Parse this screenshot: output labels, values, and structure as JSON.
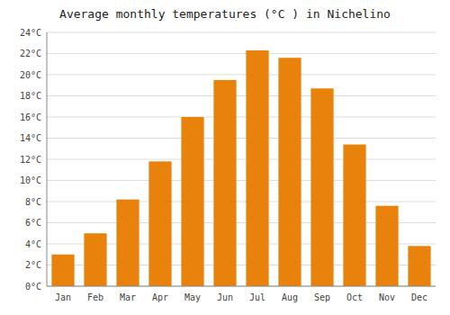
{
  "chart_data": {
    "type": "bar",
    "title": "Average monthly temperatures (°C ) in Nichelino",
    "categories": [
      "Jan",
      "Feb",
      "Mar",
      "Apr",
      "May",
      "Jun",
      "Jul",
      "Aug",
      "Sep",
      "Oct",
      "Nov",
      "Dec"
    ],
    "values": [
      3.0,
      5.0,
      8.2,
      11.8,
      16.0,
      19.5,
      22.3,
      21.6,
      18.7,
      13.4,
      7.6,
      3.8
    ],
    "color": "#E8820A",
    "ylim": [
      0,
      24
    ],
    "yticks": [
      {
        "value": 0,
        "label": "0°C"
      },
      {
        "value": 2,
        "label": "2°C"
      },
      {
        "value": 4,
        "label": "4°C"
      },
      {
        "value": 6,
        "label": "6°C"
      },
      {
        "value": 8,
        "label": "8°C"
      },
      {
        "value": 10,
        "label": "10°C"
      },
      {
        "value": 12,
        "label": "12°C"
      },
      {
        "value": 14,
        "label": "14°C"
      },
      {
        "value": 16,
        "label": "16°C"
      },
      {
        "value": 18,
        "label": "18°C"
      },
      {
        "value": 20,
        "label": "20°C"
      },
      {
        "value": 22,
        "label": "22°C"
      },
      {
        "value": 24,
        "label": "24°C"
      }
    ],
    "grid": true
  }
}
